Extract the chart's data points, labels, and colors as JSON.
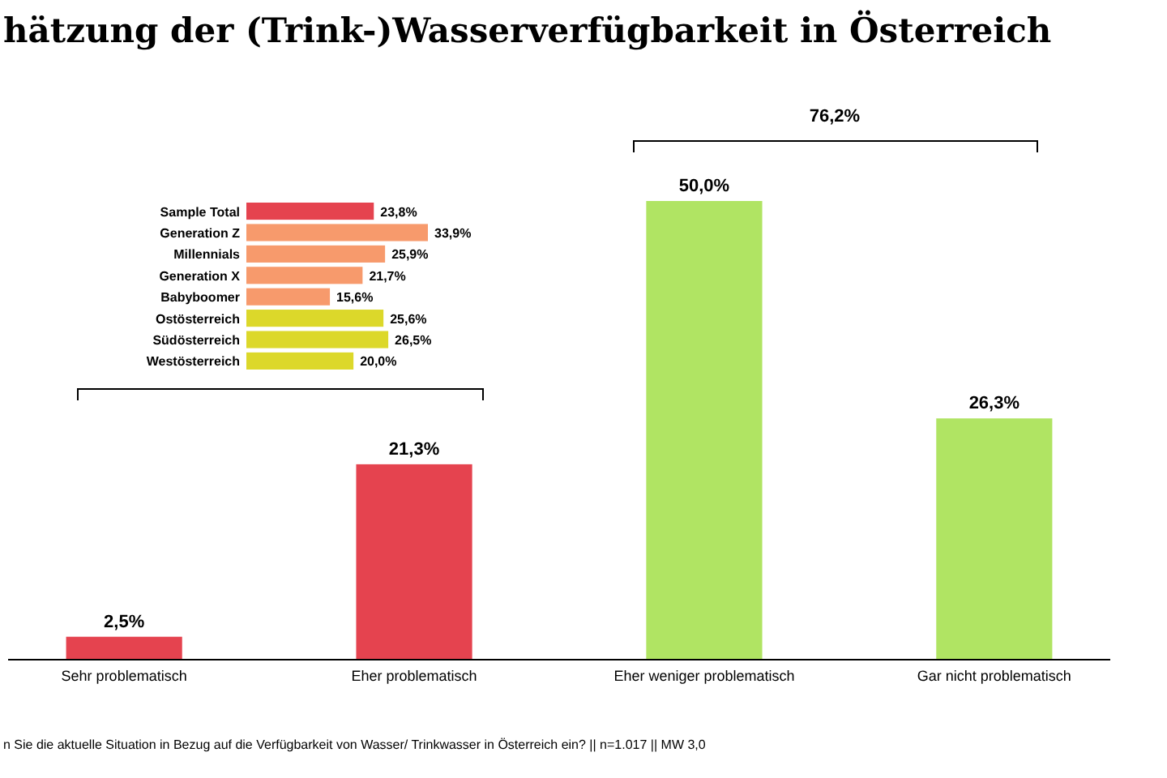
{
  "chart_data": [
    {
      "type": "bar",
      "title": "hätzung der (Trink-)Wasserverfügbarkeit in Österreich",
      "categories": [
        "Sehr problematisch",
        "Eher problematisch",
        "Eher weniger problematisch",
        "Gar nicht problematisch"
      ],
      "values": [
        2.5,
        21.3,
        50.0,
        26.3
      ],
      "colors": [
        "#e5434f",
        "#e5434f",
        "#b0e463",
        "#b0e463"
      ],
      "value_labels": [
        "2,5%",
        "21,3%",
        "50,0%",
        "26,3%"
      ],
      "annotations": [
        "76,2%",
        "n Sie die aktuelle Situation in Bezug auf die Verfügbarkeit von Wasser/ Trinkwasser in Österreich ein?  || n=1.017 || MW 3,0"
      ]
    },
    {
      "type": "bar",
      "orientation": "horizontal",
      "categories": [
        "Sample Total",
        "Generation Z",
        "Millennials",
        "Generation X",
        "Babyboomer",
        "Ostösterreich",
        "Südösterreich",
        "Westösterreich"
      ],
      "values": [
        23.8,
        33.9,
        25.9,
        21.7,
        15.6,
        25.6,
        26.5,
        20.0
      ],
      "colors": [
        "#e5434f",
        "#f79a6c",
        "#f79a6c",
        "#f79a6c",
        "#f79a6c",
        "#dcd82a",
        "#dcd82a",
        "#dcd82a"
      ],
      "value_labels": [
        "23,8%",
        "33,9%",
        "25,9%",
        "21,7%",
        "15,6%",
        "25,6%",
        "26,5%",
        "20,0%"
      ]
    }
  ]
}
